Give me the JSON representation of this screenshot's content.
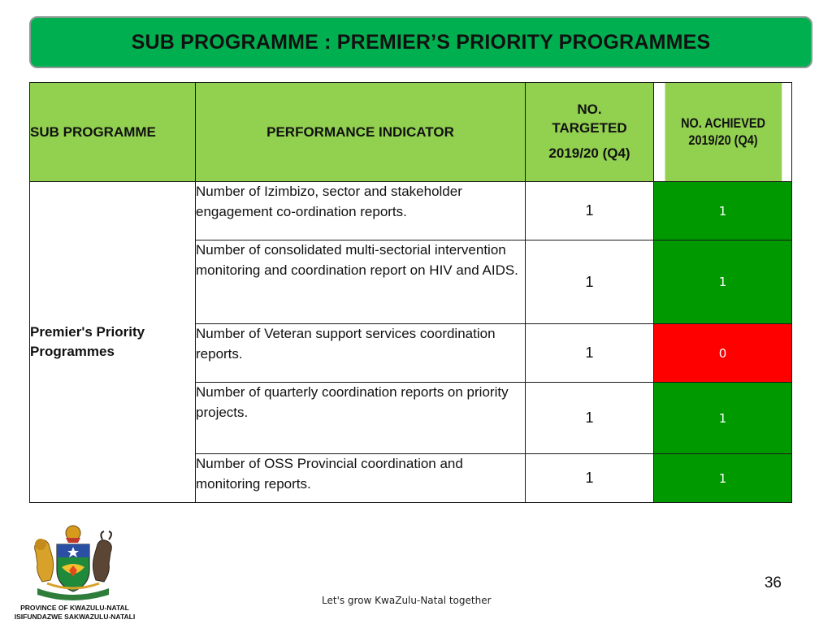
{
  "title": "SUB PROGRAMME : PREMIER’S PRIORITY PROGRAMMES",
  "table": {
    "headers": {
      "sub_programme": "SUB PROGRAMME",
      "performance_indicator": "PERFORMANCE INDICATOR",
      "targeted_line1": "NO.",
      "targeted_line2": "TARGETED",
      "targeted_line3": "2019/20 (Q4)",
      "achieved_line1": "NO.  ACHIEVED",
      "achieved_line2": "2019/20 (Q4)"
    },
    "sub_programme_name": "Premier's Priority Programmes",
    "rows": [
      {
        "indicator": "Number of Izimbizo, sector and stakeholder engagement  co-ordination reports.",
        "targeted": "1",
        "achieved": "1",
        "achieved_color": "#009900"
      },
      {
        "indicator": "Number of consolidated multi-sectorial intervention monitoring and coordination report on HIV and AIDS.",
        "targeted": "1",
        "achieved": "1",
        "achieved_color": "#009900"
      },
      {
        "indicator": "Number of Veteran support services coordination  reports.",
        "targeted": "1",
        "achieved": "0",
        "achieved_color": "#ff0000"
      },
      {
        "indicator": "Number of quarterly coordination reports on priority projects.",
        "targeted": "1",
        "achieved": "1",
        "achieved_color": "#009900"
      },
      {
        "indicator": "Number of OSS Provincial coordination and monitoring reports.",
        "targeted": "1",
        "achieved": "1",
        "achieved_color": "#009900"
      }
    ]
  },
  "logo": {
    "icon": "kwazulu-natal-coat-of-arms-icon",
    "caption_line1": "PROVINCE OF KWAZULU-NATAL",
    "caption_line2": "ISIFUNDAZWE SAKWAZULU-NATALI"
  },
  "footer": {
    "slogan": "Let's grow KwaZulu-Natal together",
    "page_number": "36"
  },
  "colors": {
    "banner": "#00b050",
    "header_fill": "#92d050",
    "achieved_green": "#009900",
    "achieved_red": "#ff0000"
  }
}
